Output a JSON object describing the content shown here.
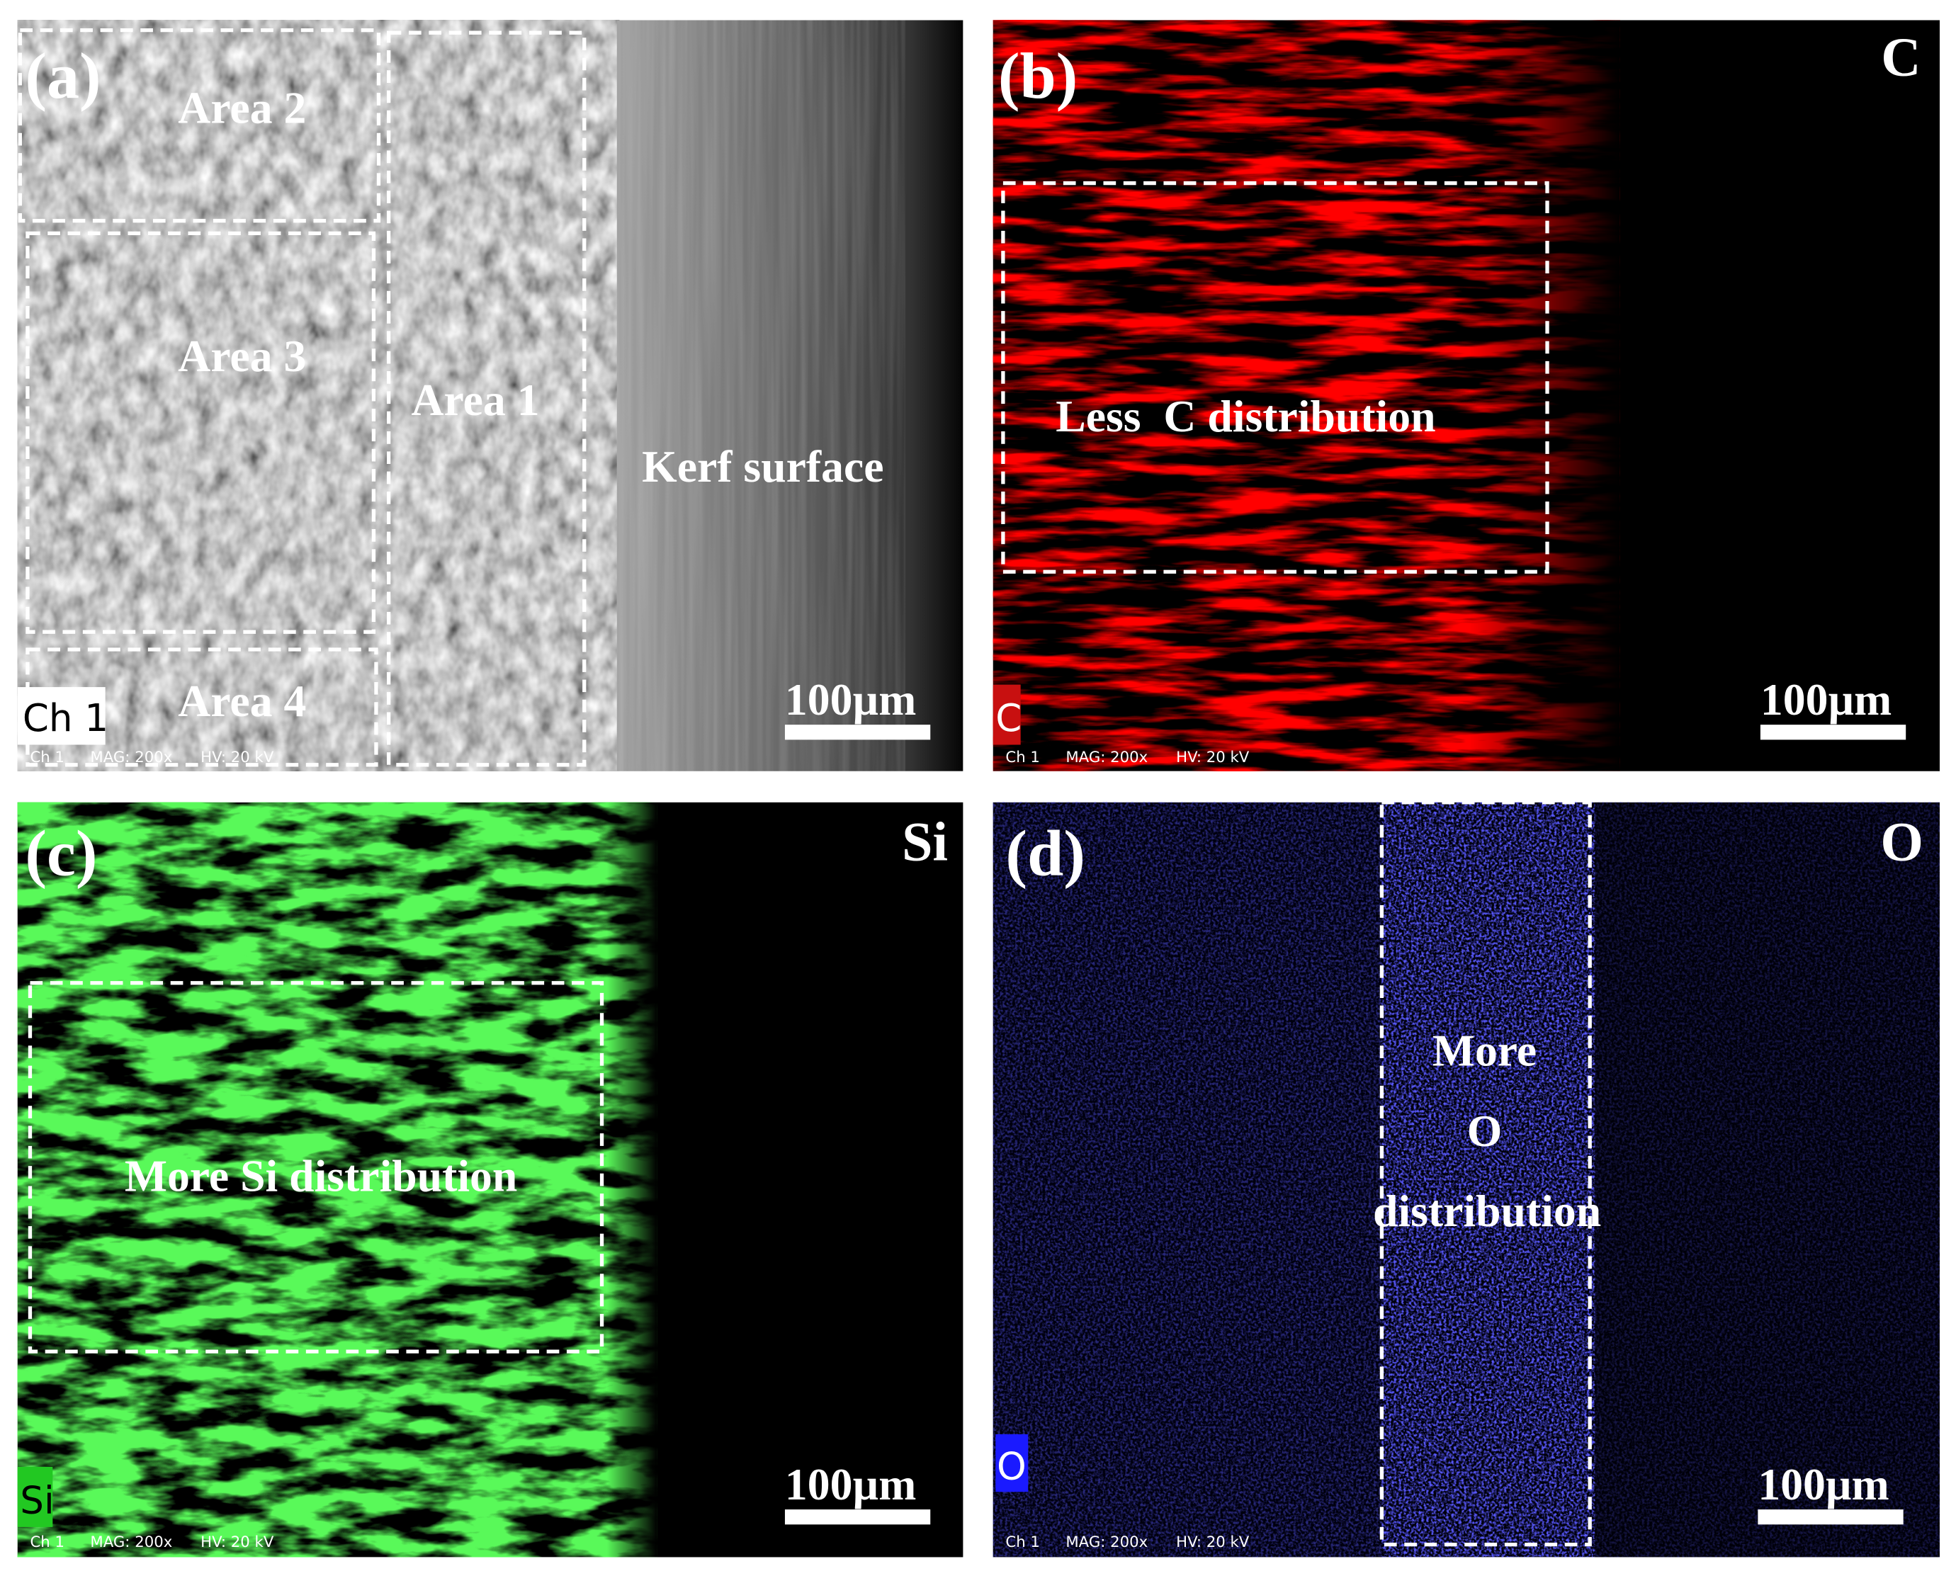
{
  "panels": [
    {
      "label": "(a)",
      "annotations": [
        "Area 2",
        "Area 3",
        "Area 1",
        "Area 4",
        "Kerf surface"
      ],
      "channel": "Ch 1",
      "scale_bar": "100µm",
      "footer": {
        "channel": "Ch 1",
        "magnification": "MAG: 200x",
        "voltage": "HV: 20 kV"
      }
    },
    {
      "label": "(b)",
      "element": "C",
      "annotations": [
        "Less  C distribution"
      ],
      "channel": "C",
      "scale_bar": "100µm",
      "footer": {
        "channel": "Ch 1",
        "magnification": "MAG: 200x",
        "voltage": "HV: 20 kV"
      }
    },
    {
      "label": "(c)",
      "element": "Si",
      "annotations": [
        "More Si distribution"
      ],
      "channel": "Si",
      "scale_bar": "100µm",
      "footer": {
        "channel": "Ch 1",
        "magnification": "MAG: 200x",
        "voltage": "HV: 20 kV"
      }
    },
    {
      "label": "(d)",
      "element": "O",
      "annotations": [
        "More",
        "O",
        "distribution"
      ],
      "channel": "O",
      "scale_bar": "100µm",
      "footer": {
        "channel": "Ch 1",
        "magnification": "MAG: 200x",
        "voltage": "HV: 20 kV"
      }
    }
  ]
}
